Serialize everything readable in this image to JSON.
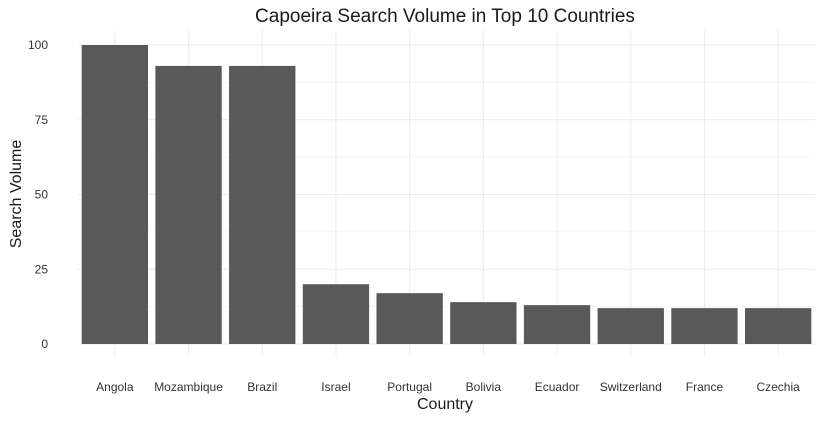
{
  "chart_data": {
    "type": "bar",
    "title": "Capoeira Search Volume in Top 10 Countries",
    "xlabel": "Country",
    "ylabel": "Search Volume",
    "categories": [
      "Angola",
      "Mozambique",
      "Brazil",
      "Israel",
      "Portugal",
      "Bolivia",
      "Ecuador",
      "Switzerland",
      "France",
      "Czechia"
    ],
    "values": [
      100,
      93,
      93,
      20,
      17,
      14,
      13,
      12,
      12,
      12
    ],
    "ylim": [
      0,
      100
    ],
    "yticks": [
      0,
      25,
      50,
      75,
      100
    ],
    "grid": true,
    "legend": "none",
    "bar_color": "#595959"
  }
}
